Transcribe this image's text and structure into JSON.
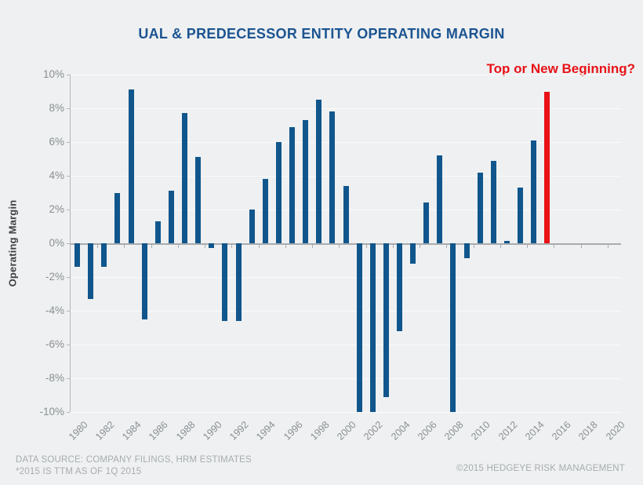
{
  "page": {
    "background": "#eef0f1"
  },
  "header": {
    "title": "UAL & PREDECESSOR ENTITY OPERATING MARGIN",
    "title_color": "#1c5492",
    "annotation": "Top or New Beginning?",
    "annotation_color": "#e81217"
  },
  "chart_data": {
    "type": "bar",
    "title": "UAL & PREDECESSOR ENTITY OPERATING MARGIN",
    "xlabel": "",
    "ylabel": "Operating Margin",
    "ylim": [
      -10,
      10
    ],
    "ytick_step": 2,
    "ytick_labels": [
      "10%",
      "8%",
      "6%",
      "4%",
      "2%",
      "0%",
      "-2%",
      "-4%",
      "-6%",
      "-8%",
      "-10%"
    ],
    "xtick_labels": [
      "1980",
      "1982",
      "1984",
      "1986",
      "1988",
      "1990",
      "1992",
      "1994",
      "1996",
      "1998",
      "2000",
      "2002",
      "2004",
      "2006",
      "2008",
      "2010",
      "2012",
      "2014",
      "2016",
      "2018",
      "2020"
    ],
    "x_first_year": 1980,
    "x_last_year": 2020,
    "legend_position": "none",
    "grid": "faint horizontal gridlines every 2%",
    "bar_color": "#10568c",
    "highlight_color": "#e81217",
    "highlight_year": 2015,
    "clipped_at_axis_min_years": [
      2001,
      2002,
      2008
    ],
    "points": [
      {
        "year": 1980,
        "value": -1.4
      },
      {
        "year": 1981,
        "value": -3.3
      },
      {
        "year": 1982,
        "value": -1.4
      },
      {
        "year": 1983,
        "value": 3.0
      },
      {
        "year": 1984,
        "value": 9.1
      },
      {
        "year": 1985,
        "value": -4.5
      },
      {
        "year": 1986,
        "value": 1.3
      },
      {
        "year": 1987,
        "value": 3.1
      },
      {
        "year": 1988,
        "value": 7.7
      },
      {
        "year": 1989,
        "value": 5.1
      },
      {
        "year": 1990,
        "value": -0.3
      },
      {
        "year": 1991,
        "value": -4.6
      },
      {
        "year": 1992,
        "value": -4.6
      },
      {
        "year": 1993,
        "value": 2.0
      },
      {
        "year": 1994,
        "value": 3.8
      },
      {
        "year": 1995,
        "value": 6.0
      },
      {
        "year": 1996,
        "value": 6.9
      },
      {
        "year": 1997,
        "value": 7.3
      },
      {
        "year": 1998,
        "value": 8.5
      },
      {
        "year": 1999,
        "value": 7.8
      },
      {
        "year": 2000,
        "value": 3.4
      },
      {
        "year": 2001,
        "value": -10.0
      },
      {
        "year": 2002,
        "value": -10.0
      },
      {
        "year": 2003,
        "value": -9.1
      },
      {
        "year": 2004,
        "value": -5.2
      },
      {
        "year": 2005,
        "value": -1.2
      },
      {
        "year": 2006,
        "value": 2.4
      },
      {
        "year": 2007,
        "value": 5.2
      },
      {
        "year": 2008,
        "value": -10.0
      },
      {
        "year": 2009,
        "value": -0.9
      },
      {
        "year": 2010,
        "value": 4.2
      },
      {
        "year": 2011,
        "value": 4.9
      },
      {
        "year": 2012,
        "value": 0.15
      },
      {
        "year": 2013,
        "value": 3.3
      },
      {
        "year": 2014,
        "value": 6.1
      },
      {
        "year": 2015,
        "value": 9.0,
        "highlight": true
      }
    ]
  },
  "footer": {
    "source_line1": "DATA SOURCE: COMPANY FILINGS, HRM ESTIMATES",
    "source_line2": "*2015 IS TTM AS OF 1Q 2015",
    "copyright": "©2015 HEDGEYE RISK MANAGEMENT"
  }
}
